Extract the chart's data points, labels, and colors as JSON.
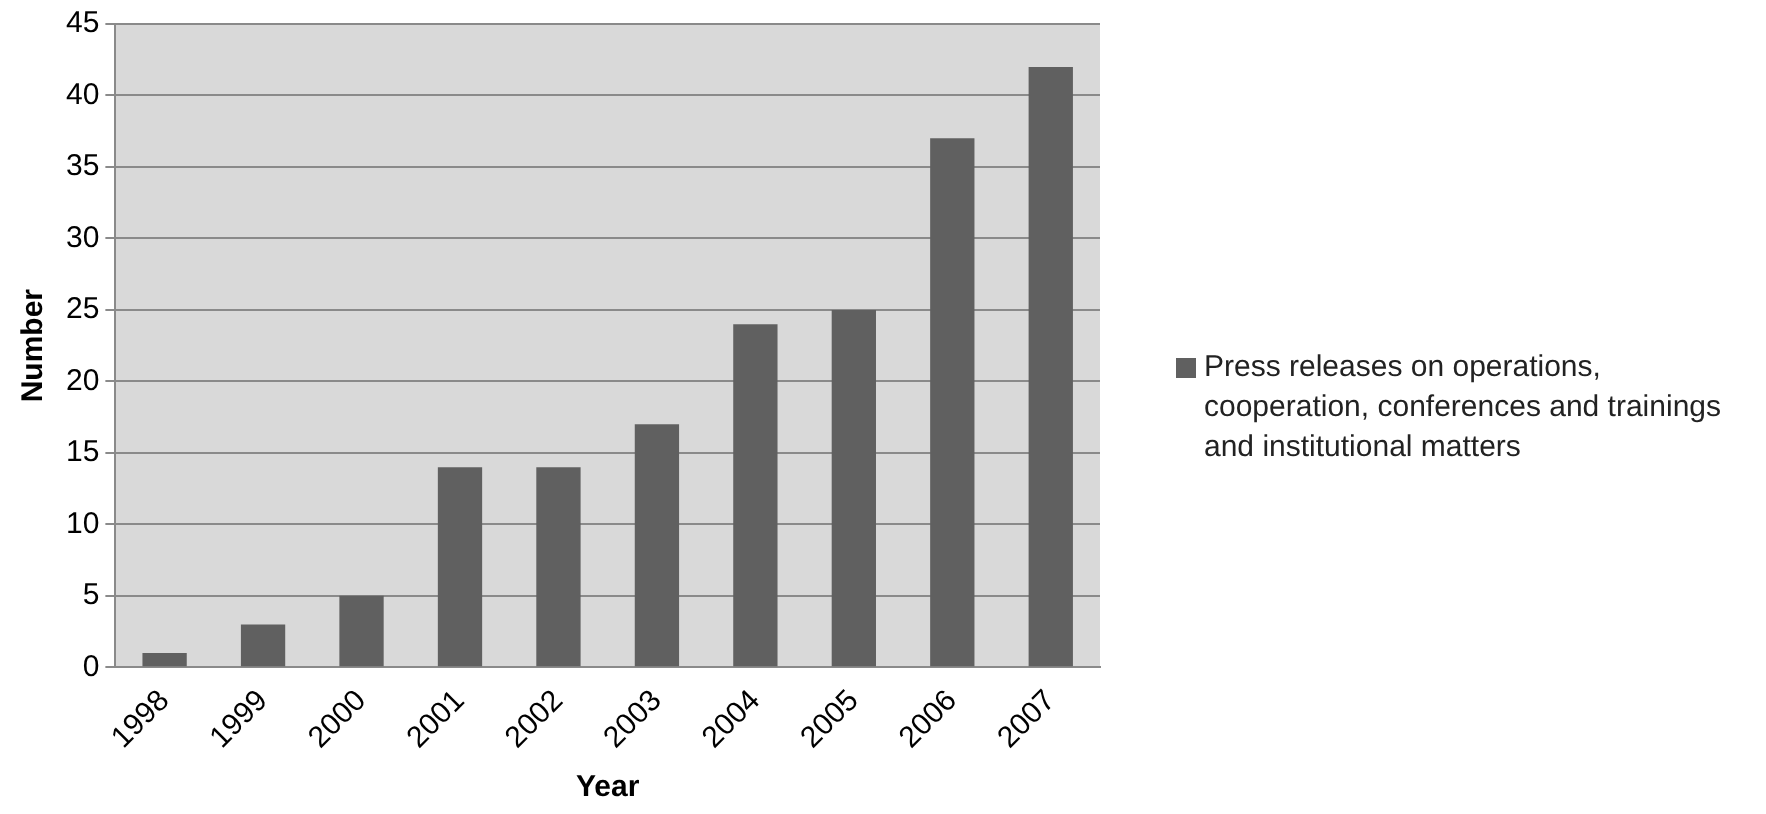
{
  "chart_data": {
    "type": "bar",
    "xlabel": "Year",
    "ylabel": "Number",
    "categories": [
      "1998",
      "1999",
      "2000",
      "2001",
      "2002",
      "2003",
      "2004",
      "2005",
      "2006",
      "2007"
    ],
    "series": [
      {
        "name": "Press releases on operations, cooperation, conferences and trainings and institutional matters",
        "color": "#606060",
        "values": [
          1,
          3,
          5,
          14,
          14,
          17,
          24,
          25,
          37,
          42
        ]
      }
    ],
    "ylim": [
      0,
      45
    ],
    "yticks": [
      0,
      5,
      10,
      15,
      20,
      25,
      30,
      35,
      40,
      45
    ],
    "grid": "y",
    "legend": "right"
  }
}
